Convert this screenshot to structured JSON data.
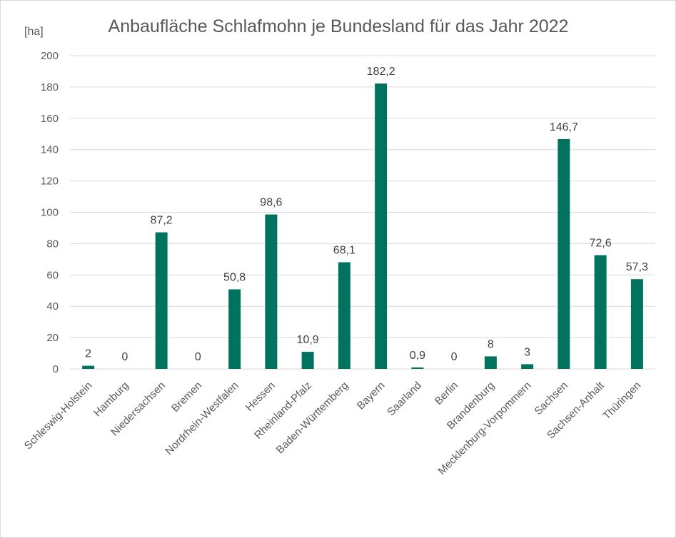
{
  "chart_data": {
    "type": "bar",
    "title": "Anbaufläche Schlafmohn je Bundesland für das Jahr 2022",
    "ylabel": "[ha]",
    "xlabel": "",
    "ylim": [
      0,
      200
    ],
    "yticks": [
      0,
      20,
      40,
      60,
      80,
      100,
      120,
      140,
      160,
      180,
      200
    ],
    "grid": true,
    "bar_color": "#00735f",
    "categories": [
      "Schleswig-Holstein",
      "Hamburg",
      "Niedersachsen",
      "Bremen",
      "Nordrhein-Westfalen",
      "Hessen",
      "Rheinland-Pfalz",
      "Baden-Württemberg",
      "Bayern",
      "Saarland",
      "Berlin",
      "Brandenburg",
      "Mecklenburg-Vorpommern",
      "Sachsen",
      "Sachsen-Anhalt",
      "Thüringen"
    ],
    "values": [
      2,
      0,
      87.2,
      0,
      50.8,
      98.6,
      10.9,
      68.1,
      182.2,
      0.9,
      0,
      8,
      3,
      146.7,
      72.6,
      57.3
    ],
    "data_labels": [
      "2",
      "0",
      "87,2",
      "0",
      "50,8",
      "98,6",
      "10,9",
      "68,1",
      "182,2",
      "0,9",
      "0",
      "8",
      "3",
      "146,7",
      "72,6",
      "57,3"
    ]
  }
}
